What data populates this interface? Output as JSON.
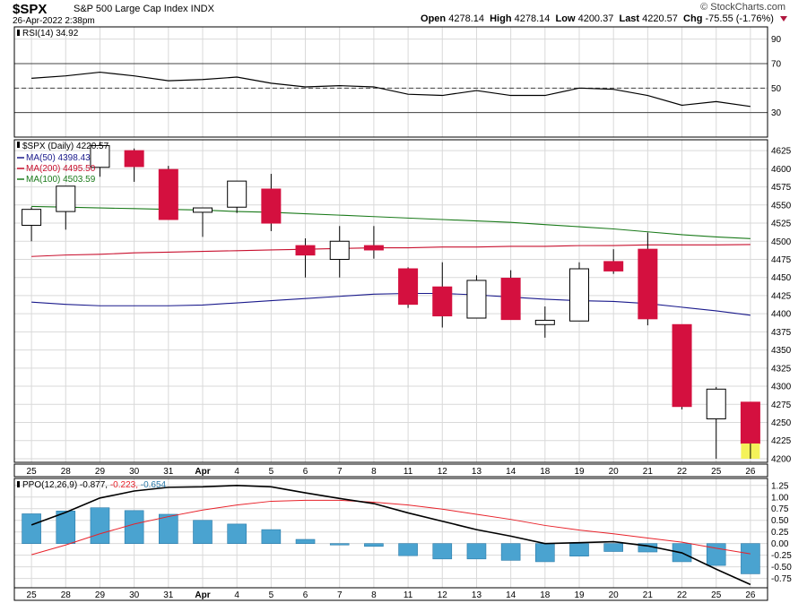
{
  "header": {
    "symbol": "$SPX",
    "description": "S&P 500 Large Cap Index  INDX",
    "timestamp": "26-Apr-2022 2:38pm",
    "brand": "© StockCharts.com",
    "open_label": "Open",
    "open": "4278.14",
    "high_label": "High",
    "high": "4278.14",
    "low_label": "Low",
    "low": "4200.37",
    "last_label": "Last",
    "last": "4220.57",
    "chg_label": "Chg",
    "chg": "-75.55 (-1.76%)",
    "down_icon": "triangle-down-icon"
  },
  "chart_data": [
    {
      "type": "line",
      "panel": "rsi",
      "legend": "RSI(14) 34.92",
      "ylim": [
        10,
        100
      ],
      "yticks": [
        30,
        50,
        70,
        90
      ],
      "reference_lines": [
        30,
        50,
        70
      ],
      "series": [
        {
          "name": "RSI(14)",
          "values": [
            58,
            60,
            63,
            60,
            56,
            57,
            59,
            54,
            51,
            52,
            51,
            45,
            44,
            48,
            44,
            44,
            50,
            49,
            44,
            36,
            39,
            35
          ]
        }
      ]
    },
    {
      "type": "candlestick",
      "panel": "price",
      "legend": "$SPX (Daily) 4220.57",
      "ylim": [
        4195,
        4640
      ],
      "yticks": [
        4200,
        4225,
        4250,
        4275,
        4300,
        4325,
        4350,
        4375,
        4400,
        4425,
        4450,
        4475,
        4500,
        4525,
        4550,
        4575,
        4600,
        4625
      ],
      "categories": [
        "25",
        "28",
        "29",
        "30",
        "31",
        "Apr",
        "4",
        "5",
        "6",
        "7",
        "8",
        "11",
        "12",
        "13",
        "14",
        "18",
        "19",
        "20",
        "21",
        "22",
        "25",
        "26"
      ],
      "candles": [
        {
          "o": 4522,
          "h": 4547,
          "l": 4500,
          "c": 4544
        },
        {
          "o": 4541,
          "h": 4576,
          "l": 4516,
          "c": 4576
        },
        {
          "o": 4602,
          "h": 4637,
          "l": 4589,
          "c": 4632
        },
        {
          "o": 4625,
          "h": 4628,
          "l": 4582,
          "c": 4603
        },
        {
          "o": 4599,
          "h": 4604,
          "l": 4530,
          "c": 4530
        },
        {
          "o": 4540,
          "h": 4546,
          "l": 4506,
          "c": 4546
        },
        {
          "o": 4547,
          "h": 4583,
          "l": 4539,
          "c": 4583
        },
        {
          "o": 4572,
          "h": 4593,
          "l": 4514,
          "c": 4525
        },
        {
          "o": 4494,
          "h": 4504,
          "l": 4450,
          "c": 4481
        },
        {
          "o": 4475,
          "h": 4521,
          "l": 4450,
          "c": 4500
        },
        {
          "o": 4494,
          "h": 4521,
          "l": 4476,
          "c": 4488
        },
        {
          "o": 4462,
          "h": 4464,
          "l": 4408,
          "c": 4413
        },
        {
          "o": 4437,
          "h": 4471,
          "l": 4381,
          "c": 4397
        },
        {
          "o": 4394,
          "h": 4453,
          "l": 4394,
          "c": 4446
        },
        {
          "o": 4449,
          "h": 4460,
          "l": 4392,
          "c": 4392
        },
        {
          "o": 4385,
          "h": 4410,
          "l": 4367,
          "c": 4391
        },
        {
          "o": 4390,
          "h": 4471,
          "l": 4390,
          "c": 4462
        },
        {
          "o": 4472,
          "h": 4489,
          "l": 4455,
          "c": 4459
        },
        {
          "o": 4489,
          "h": 4512,
          "l": 4384,
          "c": 4393
        },
        {
          "o": 4385,
          "h": 4385,
          "l": 4268,
          "c": 4272
        },
        {
          "o": 4255,
          "h": 4299,
          "l": 4200,
          "c": 4296
        },
        {
          "o": 4278,
          "h": 4278,
          "l": 4200,
          "c": 4221
        }
      ],
      "moving_averages": [
        {
          "name": "MA(50)",
          "legend": "MA(50) 4398.43",
          "color": "#1a1a8c",
          "values": [
            4416,
            4413,
            4411,
            4411,
            4411,
            4412,
            4415,
            4418,
            4421,
            4424,
            4427,
            4428,
            4428,
            4426,
            4423,
            4420,
            4418,
            4417,
            4414,
            4409,
            4404,
            4398
          ]
        },
        {
          "name": "MA(200)",
          "legend": "MA(200) 4495.50",
          "color": "#c8102e",
          "values": [
            4479,
            4481,
            4482,
            4484,
            4485,
            4486,
            4487,
            4488,
            4489,
            4490,
            4491,
            4491,
            4492,
            4492,
            4493,
            4493,
            4494,
            4494,
            4495,
            4495,
            4495,
            4495.5
          ]
        },
        {
          "name": "MA(100)",
          "legend": "MA(100) 4503.59",
          "color": "#1a7a1a",
          "values": [
            4548,
            4547,
            4546,
            4545,
            4544,
            4543,
            4541,
            4540,
            4538,
            4536,
            4534,
            4532,
            4530,
            4528,
            4526,
            4523,
            4520,
            4517,
            4513,
            4509,
            4506,
            4503.6
          ]
        }
      ]
    },
    {
      "type": "bar",
      "panel": "ppo",
      "legend_prefix": "PPO(12,26,9)",
      "legend_ppo": "-0.877,",
      "legend_signal": "-0.223,",
      "legend_hist": "-0.654",
      "ylim": [
        -0.95,
        1.4
      ],
      "yticks": [
        -0.75,
        -0.5,
        -0.25,
        0.0,
        0.25,
        0.5,
        0.75,
        1.0,
        1.25
      ],
      "series": [
        {
          "name": "PPO",
          "color": "#000000",
          "values": [
            0.4,
            0.67,
            0.98,
            1.13,
            1.21,
            1.22,
            1.25,
            1.22,
            1.09,
            0.97,
            0.86,
            0.66,
            0.48,
            0.3,
            0.16,
            0.0,
            0.02,
            0.04,
            -0.05,
            -0.2,
            -0.55,
            -0.88
          ]
        },
        {
          "name": "Signal",
          "color": "#e8222a",
          "values": [
            -0.24,
            -0.03,
            0.21,
            0.42,
            0.58,
            0.72,
            0.83,
            0.91,
            0.93,
            0.93,
            0.89,
            0.83,
            0.74,
            0.63,
            0.52,
            0.39,
            0.29,
            0.21,
            0.12,
            0.03,
            -0.1,
            -0.22
          ]
        },
        {
          "name": "Histogram",
          "color": "#4aa3d0",
          "values": [
            0.64,
            0.7,
            0.77,
            0.71,
            0.63,
            0.5,
            0.42,
            0.3,
            0.09,
            -0.03,
            -0.06,
            -0.26,
            -0.33,
            -0.33,
            -0.36,
            -0.39,
            -0.27,
            -0.17,
            -0.18,
            -0.39,
            -0.47,
            -0.65
          ]
        }
      ]
    }
  ],
  "x_axis": {
    "categories": [
      "25",
      "28",
      "29",
      "30",
      "31",
      "Apr",
      "4",
      "5",
      "6",
      "7",
      "8",
      "11",
      "12",
      "13",
      "14",
      "18",
      "19",
      "20",
      "21",
      "22",
      "25",
      "26"
    ],
    "bold": [
      "Apr"
    ]
  },
  "colors": {
    "up_fill": "#ffffff",
    "down_fill": "#d4103f",
    "candle_border": "#000000",
    "grid": "#d9d9d9",
    "last_bar_highlight": "#f4f25a",
    "last_price_marker": "#f4f25a"
  }
}
